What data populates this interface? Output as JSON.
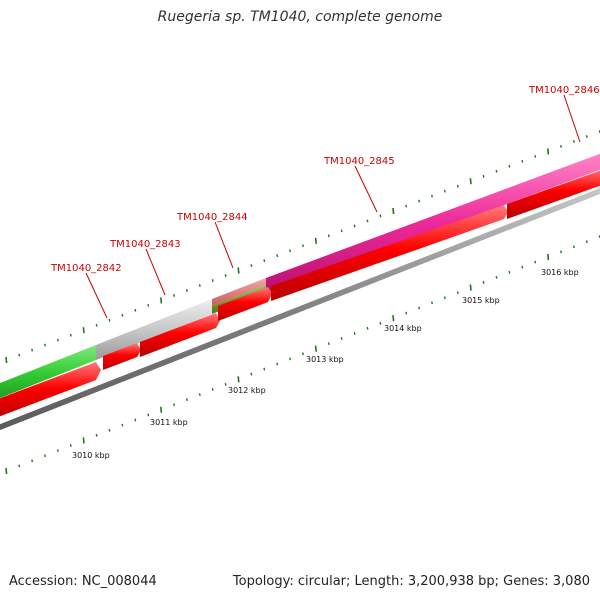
{
  "title": "Ruegeria sp. TM1040, complete genome",
  "footer": {
    "accession": "Accession: NC_008044",
    "stats": "Topology: circular; Length: 3,200,938 bp; Genes: 3,080"
  },
  "colors": {
    "cds": "#ff0000",
    "backbone": "#808080",
    "tick": "#1a7a1a",
    "gene_label": "#cc0000",
    "gene_2842": "#33cc33",
    "gene_2843": "#c8c8c8",
    "gene_2844a": "#e07a7a",
    "gene_2844b": "#6e9a2e",
    "gene_2845": "#ee2a9a"
  },
  "gene_labels": [
    "TM1040_2842",
    "TM1040_2843",
    "TM1040_2844",
    "TM1040_2845",
    "TM1040_2846"
  ],
  "kbp_labels": [
    "3010 kbp",
    "3011 kbp",
    "3012 kbp",
    "3013 kbp",
    "3014 kbp",
    "3015 kbp",
    "3016 kbp"
  ]
}
